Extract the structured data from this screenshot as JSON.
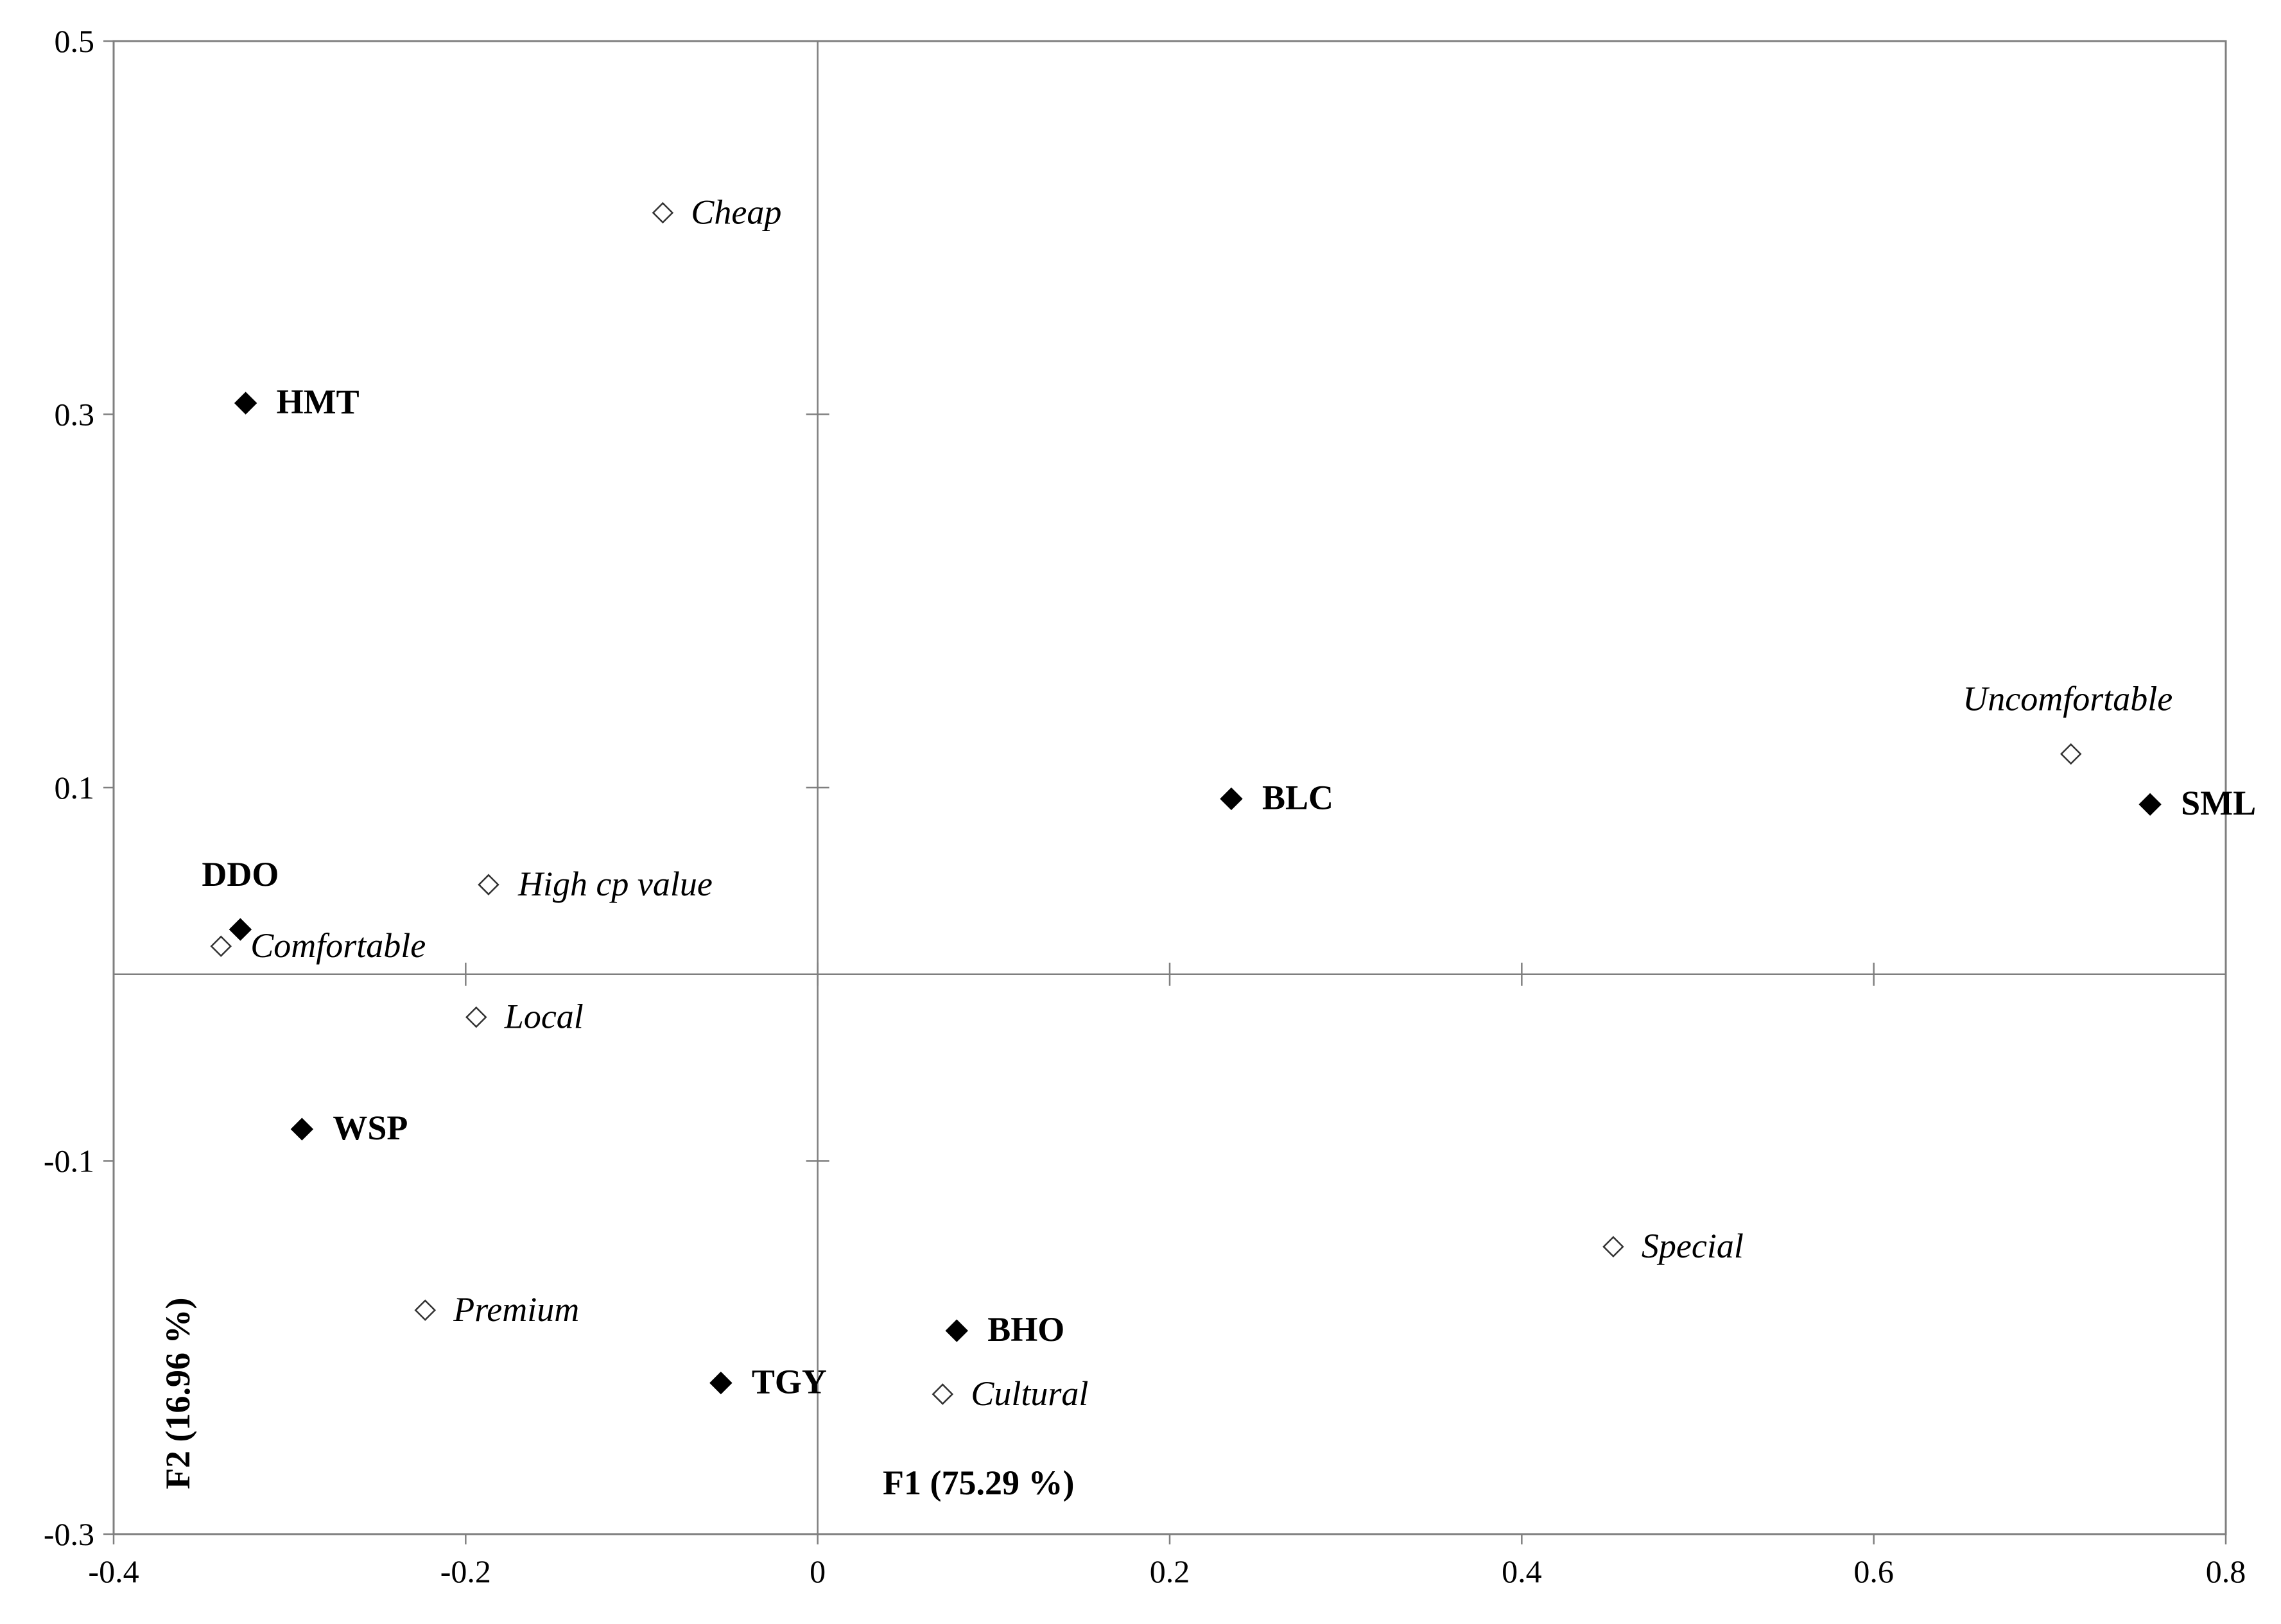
{
  "chart_data": {
    "type": "scatter",
    "xlabel": "F1 (75.29 %)",
    "ylabel": "F2 (16.96 %)",
    "xlim": [
      -0.4,
      0.8
    ],
    "ylim": [
      -0.3,
      0.5
    ],
    "x_ticks": [
      "-0.4",
      "-0.2",
      "0",
      "0.2",
      "0.4",
      "0.6",
      "0.8"
    ],
    "y_ticks": [
      "0.5",
      "0.3",
      "0.1",
      "-0.1",
      "-0.3"
    ],
    "grid": false,
    "series": [
      {
        "marker": "filled-diamond",
        "points": [
          {
            "label": "HMT",
            "x": -0.325,
            "y": 0.306
          },
          {
            "label": "DDO",
            "x": -0.328,
            "y": 0.024
          },
          {
            "label": "WSP",
            "x": -0.293,
            "y": -0.083
          },
          {
            "label": "BLC",
            "x": 0.235,
            "y": 0.094
          },
          {
            "label": "SML",
            "x": 0.757,
            "y": 0.091
          },
          {
            "label": "BHO",
            "x": 0.079,
            "y": -0.191
          },
          {
            "label": "TGY",
            "x": -0.055,
            "y": -0.219
          }
        ]
      },
      {
        "marker": "open-diamond",
        "points": [
          {
            "label": "Cheap",
            "x": -0.088,
            "y": 0.408
          },
          {
            "label": "High cp value",
            "x": -0.187,
            "y": 0.048
          },
          {
            "label": "Comfortable",
            "x": -0.339,
            "y": 0.015
          },
          {
            "label": "Local",
            "x": -0.194,
            "y": -0.023
          },
          {
            "label": "Uncomfortable",
            "x": 0.712,
            "y": 0.118
          },
          {
            "label": "Special",
            "x": 0.452,
            "y": -0.146
          },
          {
            "label": "Premium",
            "x": -0.223,
            "y": -0.18
          },
          {
            "label": "Cultural",
            "x": 0.071,
            "y": -0.225
          }
        ]
      }
    ],
    "colors": {
      "marker": "#000000",
      "axis": "#7f7f7f",
      "frame": "#7f7f7f"
    }
  }
}
